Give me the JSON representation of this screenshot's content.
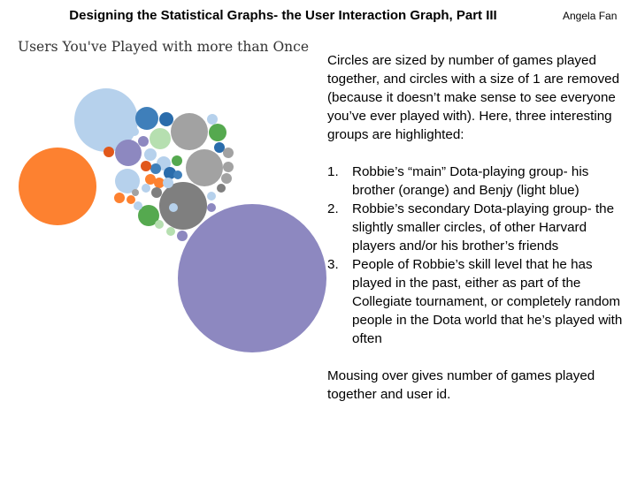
{
  "slide": {
    "title": "Designing the Statistical Graphs- the User Interaction Graph, Part III",
    "author": "Angela Fan"
  },
  "chart": {
    "title": "Users You've Played with more than Once"
  },
  "description": {
    "intro": "Circles are sized by number of games played together, and circles with a size of 1 are removed (because it doesn’t make sense to see everyone you’ve ever played with). Here, three interesting groups are highlighted:",
    "items": [
      {
        "num": "1.",
        "text": "Robbie’s “main” Dota-playing group- his brother (orange) and Benjy (light blue)"
      },
      {
        "num": "2.",
        "text": "Robbie’s secondary Dota-playing group- the slightly smaller circles, of other Harvard players and/or his brother’s friends"
      },
      {
        "num": "3.",
        "text": "People of Robbie’s skill level that he has played in the past, either as part of the Collegiate tournament, or completely random people in the Dota world that he’s played with often"
      }
    ],
    "footer": "Mousing over gives number of games played together and user id."
  },
  "colors": {
    "orange": "#fd8130",
    "light_blue": "#b6d1ec",
    "purple": "#8d88c0",
    "steel_blue": "#3f7fba",
    "dark_blue": "#2a6cab",
    "gray": "#a2a2a2",
    "dark_gray": "#7f7f7f",
    "green": "#55a94f",
    "light_green": "#b6dfb0",
    "red_orange": "#e1581b"
  }
}
